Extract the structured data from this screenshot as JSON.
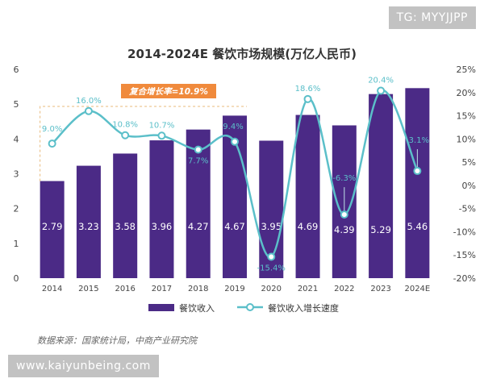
{
  "chart_data": {
    "type": "bar",
    "title": "2014-2024E 餐饮市场规模(万亿人民币)",
    "categories": [
      "2014",
      "2015",
      "2016",
      "2017",
      "2018",
      "2019",
      "2020",
      "2021",
      "2022",
      "2023",
      "2024E"
    ],
    "series": [
      {
        "name": "餐饮收入",
        "type": "bar",
        "axis": "left",
        "values": [
          2.79,
          3.23,
          3.58,
          3.96,
          4.27,
          4.67,
          3.95,
          4.69,
          4.39,
          5.29,
          5.46
        ],
        "labels": [
          "2.79",
          "3.23",
          "3.58",
          "3.96",
          "4.27",
          "4.67",
          "3.95",
          "4.69",
          "4.39",
          "5.29",
          "5.46"
        ],
        "color": "#4b2a86"
      },
      {
        "name": "餐饮收入增长速度",
        "type": "line",
        "axis": "right",
        "values": [
          9.0,
          16.0,
          10.8,
          10.7,
          7.7,
          9.4,
          -15.4,
          18.6,
          -6.3,
          20.4,
          3.1
        ],
        "labels": [
          "9.0%",
          "16.0%",
          "10.8%",
          "10.7%",
          "7.7%",
          "9.4%",
          "-15.4%",
          "18.6%",
          "-6.3%",
          "20.4%",
          "3.1%"
        ],
        "color": "#5bbfc9"
      }
    ],
    "ylim_left": [
      0,
      6
    ],
    "yticks_left": [
      "0",
      "1",
      "2",
      "3",
      "4",
      "5",
      "6"
    ],
    "ylim_right": [
      -20,
      25
    ],
    "yticks_right": [
      "-20%",
      "-15%",
      "-10%",
      "-5%",
      "0%",
      "5%",
      "10%",
      "15%",
      "20%",
      "25%"
    ],
    "annotation": "复合增长率=10.9%",
    "annotation_range": [
      "2014",
      "2019"
    ],
    "legend": "bottom",
    "source": "数据来源：国家统计局，中商产业研究院"
  },
  "overlays": {
    "tag": "TG: MYYJJPP",
    "site": "www.kaiyunbeing.com"
  },
  "colors": {
    "bar": "#4b2a86",
    "line": "#5bbfc9",
    "annotation_bg": "#f08a3c",
    "annotation_border": "#e8b87a"
  }
}
